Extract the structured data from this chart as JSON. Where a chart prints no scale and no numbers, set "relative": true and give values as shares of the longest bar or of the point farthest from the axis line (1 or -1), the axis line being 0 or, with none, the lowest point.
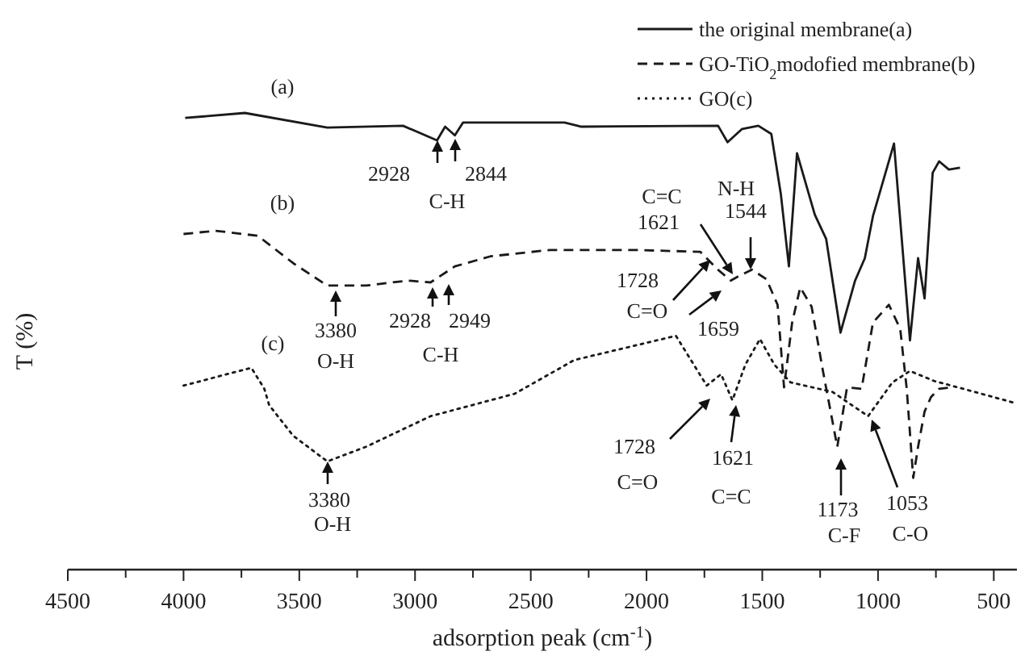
{
  "chart_data": {
    "type": "line",
    "relative": true,
    "xlabel": "adsorption peak (cm$^{-1}$)",
    "ylabel": "T (%)",
    "xlim": [
      4500,
      400
    ],
    "xticks": [
      4500,
      {
        "value": 4250,
        "label": null
      },
      4000,
      {
        "value": 3750,
        "label": null
      },
      3500,
      {
        "value": 3250,
        "label": null
      },
      3000,
      {
        "value": 2750,
        "label": null
      },
      2500,
      {
        "value": 2250,
        "label": null
      },
      2000,
      {
        "value": 1750,
        "label": null
      },
      1500,
      {
        "value": 1250,
        "label": null
      },
      1000,
      {
        "value": 750,
        "label": null
      },
      500
    ],
    "legend": "top right",
    "grid": false,
    "series": [
      {
        "name": "the original membrane(a)",
        "color": "#1a1a1a",
        "line_style": "solid",
        "x": [
          3993,
          3735,
          3379,
          3052,
          2905,
          2870,
          2828,
          2793,
          2354,
          2284,
          1691,
          1650,
          1587,
          1517,
          1461,
          1420,
          1385,
          1350,
          1273,
          1224,
          1162,
          1099,
          1057,
          1022,
          931,
          862,
          827,
          799,
          764,
          736,
          694,
          646
        ],
        "values": [
          0.989,
          1.0,
          0.968,
          0.972,
          0.94,
          0.97,
          0.951,
          0.979,
          0.979,
          0.97,
          0.972,
          0.936,
          0.965,
          0.972,
          0.954,
          0.823,
          0.664,
          0.912,
          0.777,
          0.724,
          0.519,
          0.633,
          0.682,
          0.774,
          0.933,
          0.502,
          0.682,
          0.594,
          0.869,
          0.894,
          0.876,
          0.88
        ]
      },
      {
        "name": "GO-TiO$_{2}$modofied membrane(b)",
        "color": "#1a1a1a",
        "line_style": "dashed",
        "x": [
          4000,
          3861,
          3679,
          3526,
          3379,
          3212,
          3031,
          2933,
          2828,
          2675,
          2417,
          2054,
          1768,
          1692,
          1636,
          1601,
          1545,
          1482,
          1434,
          1406,
          1371,
          1336,
          1287,
          1238,
          1176,
          1134,
          1071,
          1022,
          953,
          904,
          876,
          848,
          827,
          799,
          771,
          736,
          680
        ],
        "values": [
          0.735,
          0.742,
          0.731,
          0.671,
          0.622,
          0.622,
          0.633,
          0.629,
          0.664,
          0.686,
          0.7,
          0.7,
          0.696,
          0.657,
          0.633,
          0.643,
          0.657,
          0.636,
          0.58,
          0.399,
          0.541,
          0.618,
          0.576,
          0.435,
          0.269,
          0.399,
          0.396,
          0.541,
          0.58,
          0.527,
          0.396,
          0.201,
          0.269,
          0.346,
          0.378,
          0.396,
          0.399
        ]
      },
      {
        "name": "GO(c)",
        "color": "#1a1a1a",
        "line_style": "dotted",
        "x": [
          4000,
          3707,
          3651,
          3630,
          3526,
          3379,
          3212,
          2933,
          2570,
          2312,
          1873,
          1796,
          1740,
          1678,
          1629,
          1573,
          1510,
          1448,
          1378,
          1196,
          1043,
          938,
          862,
          757,
          632,
          402
        ],
        "values": [
          0.403,
          0.442,
          0.396,
          0.36,
          0.293,
          0.237,
          0.269,
          0.336,
          0.385,
          0.459,
          0.512,
          0.449,
          0.403,
          0.428,
          0.371,
          0.449,
          0.505,
          0.449,
          0.41,
          0.389,
          0.336,
          0.41,
          0.435,
          0.413,
          0.396,
          0.364
        ]
      }
    ],
    "annotations": [
      "(a)",
      "(b)",
      "(c)",
      "2928",
      "2844",
      "C-H",
      "3380",
      "O-H",
      "2928",
      "2949",
      "C-H",
      "C=C",
      "1621",
      "N-H",
      "1544",
      "1728",
      "C=O",
      "1659",
      "3380",
      "O-H",
      "1728",
      "C=O",
      "1621",
      "C=C",
      "1173",
      "C-F",
      "1053",
      "C-O"
    ]
  }
}
